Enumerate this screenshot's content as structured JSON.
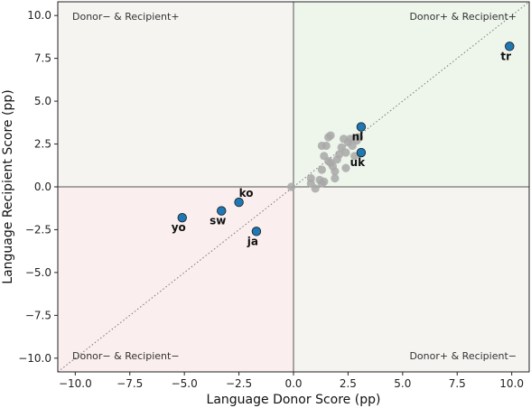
{
  "chart_data": {
    "type": "scatter",
    "title": "",
    "xlabel": "Language Donor Score (pp)",
    "ylabel": "Language Recipient Score (pp)",
    "xlim": [
      -10.8,
      10.8
    ],
    "ylim": [
      -10.8,
      10.8
    ],
    "xticks": [
      "−10.0",
      "−7.5",
      "−5.0",
      "−2.5",
      "0.0",
      "2.5",
      "5.0",
      "7.5",
      "10.0"
    ],
    "yticks": [
      "−10.0",
      "−7.5",
      "−5.0",
      "−2.5",
      "0.0",
      "2.5",
      "5.0",
      "7.5",
      "10.0"
    ],
    "xtick_values": [
      -10,
      -7.5,
      -5,
      -2.5,
      0,
      2.5,
      5,
      7.5,
      10
    ],
    "ytick_values": [
      -10,
      -7.5,
      -5,
      -2.5,
      0,
      2.5,
      5,
      7.5,
      10
    ],
    "grid": false,
    "diagonal_reference_line": true,
    "quadrants": {
      "top_left": "Donor− & Recipient+",
      "top_right": "Donor+ & Recipient+",
      "bottom_left": "Donor− & Recipient−",
      "bottom_right": "Donor+ & Recipient−"
    },
    "colors": {
      "highlight_point": "#1f77b4",
      "other_point": "#a8a8a8",
      "quad_pos_pos": "#eef6ec",
      "quad_neg_neg": "#fbeeee",
      "quad_mixed": "#f6f4f1",
      "zero_line": "#555555",
      "diagonal": "#777777"
    },
    "highlighted": [
      {
        "label": "tr",
        "x": 9.9,
        "y": 8.2
      },
      {
        "label": "nl",
        "x": 3.1,
        "y": 3.5
      },
      {
        "label": "uk",
        "x": 3.1,
        "y": 2.0
      },
      {
        "label": "ko",
        "x": -2.5,
        "y": -0.9
      },
      {
        "label": "sw",
        "x": -3.3,
        "y": -1.4
      },
      {
        "label": "yo",
        "x": -5.1,
        "y": -1.8
      },
      {
        "label": "ja",
        "x": -1.7,
        "y": -2.6
      }
    ],
    "others": [
      [
        -0.1,
        0.0
      ],
      [
        0.8,
        0.2
      ],
      [
        0.8,
        0.5
      ],
      [
        1.0,
        -0.1
      ],
      [
        1.2,
        0.4
      ],
      [
        1.3,
        0.2
      ],
      [
        1.4,
        0.3
      ],
      [
        1.3,
        1.0
      ],
      [
        1.4,
        1.8
      ],
      [
        1.5,
        2.4
      ],
      [
        1.3,
        2.4
      ],
      [
        1.6,
        2.9
      ],
      [
        1.7,
        3.0
      ],
      [
        1.6,
        1.5
      ],
      [
        1.8,
        1.2
      ],
      [
        1.9,
        0.9
      ],
      [
        1.9,
        0.5
      ],
      [
        2.0,
        1.6
      ],
      [
        2.1,
        1.9
      ],
      [
        2.2,
        2.3
      ],
      [
        2.3,
        2.8
      ],
      [
        2.4,
        2.0
      ],
      [
        2.5,
        2.6
      ],
      [
        2.6,
        2.8
      ],
      [
        2.7,
        2.4
      ],
      [
        2.9,
        2.7
      ],
      [
        3.0,
        2.9
      ],
      [
        2.8,
        1.8
      ],
      [
        2.4,
        1.1
      ],
      [
        1.7,
        1.4
      ]
    ]
  }
}
